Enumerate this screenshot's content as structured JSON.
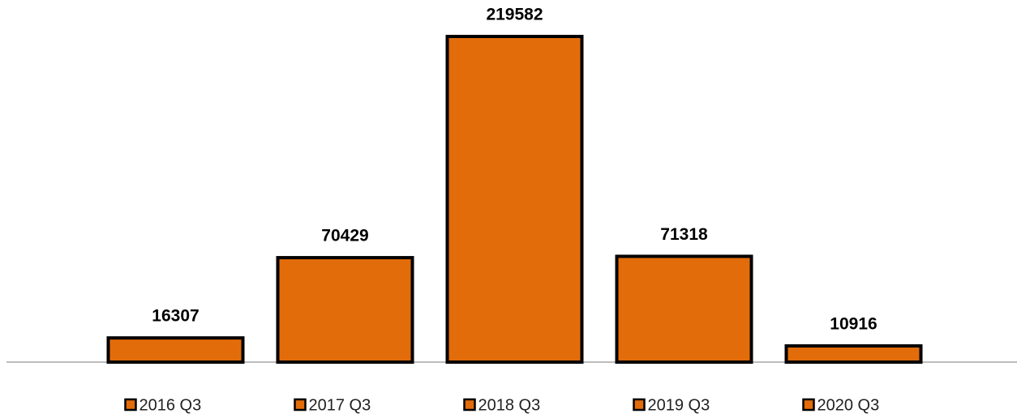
{
  "chart_data": {
    "type": "bar",
    "categories": [
      "2016 Q3",
      "2017 Q3",
      "2018 Q3",
      "2019 Q3",
      "2020 Q3"
    ],
    "values": [
      16307,
      70429,
      219582,
      71318,
      10916
    ],
    "color": "#e36c0a",
    "legend": "bottom"
  }
}
